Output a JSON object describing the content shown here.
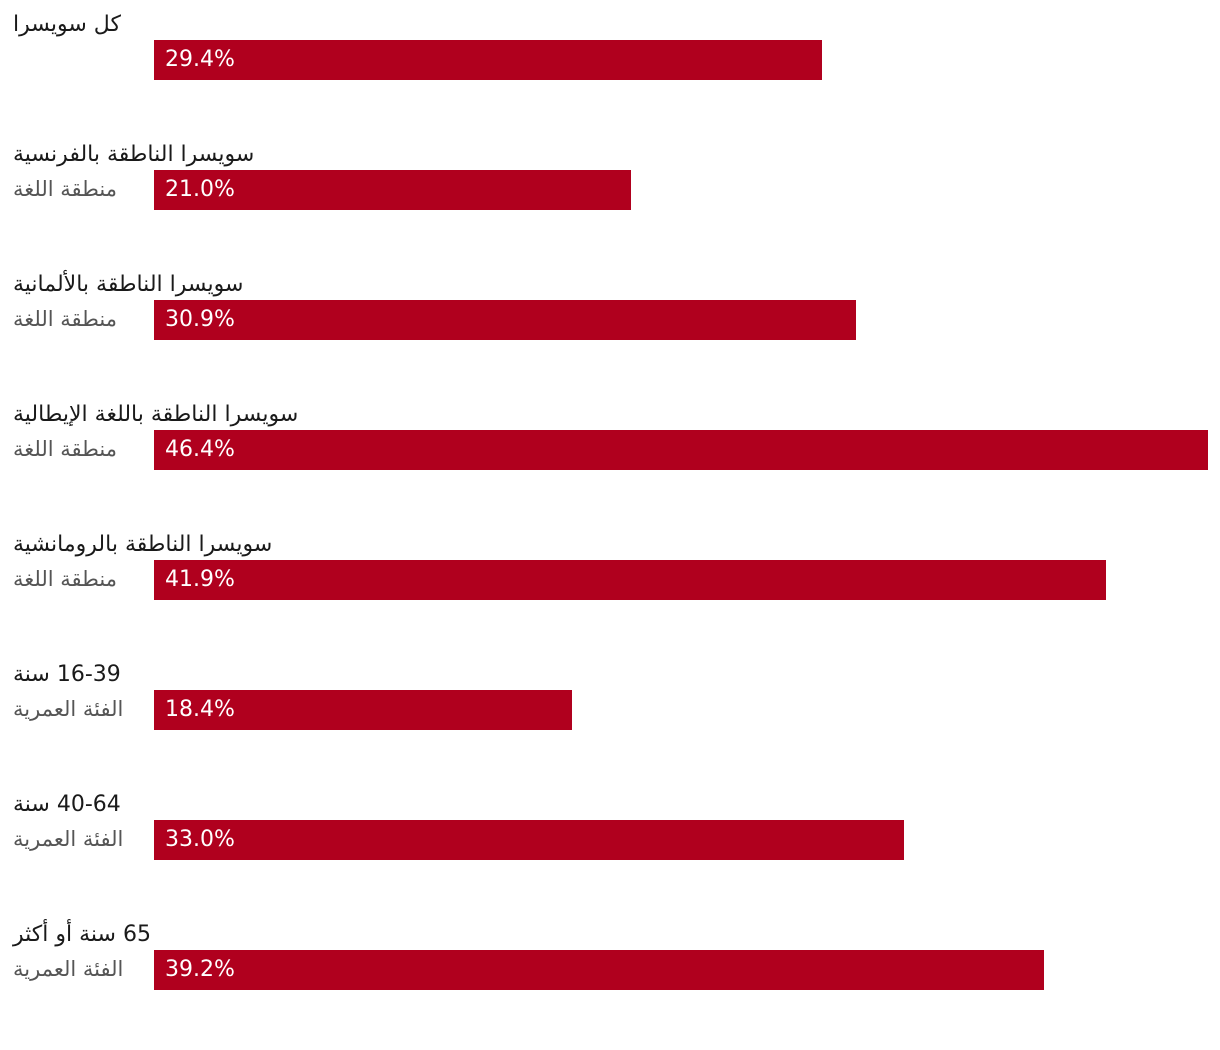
{
  "chart_data": {
    "type": "bar",
    "orientation": "horizontal",
    "bar_color": "#b0001e",
    "xlim": [
      0,
      46.4
    ],
    "categories": [
      {
        "label": "كل سويسرا",
        "group": "",
        "value": 29.4,
        "value_label": "29.4%"
      },
      {
        "label": "سويسرا الناطقة بالفرنسية",
        "group": "منطقة اللغة",
        "value": 21.0,
        "value_label": "21.0%"
      },
      {
        "label": "سويسرا الناطقة بالألمانية",
        "group": "منطقة اللغة",
        "value": 30.9,
        "value_label": "30.9%"
      },
      {
        "label": "سويسرا الناطقة باللغة الإيطالية",
        "group": "منطقة اللغة",
        "value": 46.4,
        "value_label": "46.4%"
      },
      {
        "label": "سويسرا الناطقة بالرومانشية",
        "group": "منطقة اللغة",
        "value": 41.9,
        "value_label": "41.9%"
      },
      {
        "label": "16-39 سنة",
        "group": "الفئة العمرية",
        "value": 18.4,
        "value_label": "18.4%"
      },
      {
        "label": "40-64 سنة",
        "group": "الفئة العمرية",
        "value": 33.0,
        "value_label": "33.0%"
      },
      {
        "label": "65 سنة أو أكثر",
        "group": "الفئة العمرية",
        "value": 39.2,
        "value_label": "39.2%"
      }
    ]
  }
}
